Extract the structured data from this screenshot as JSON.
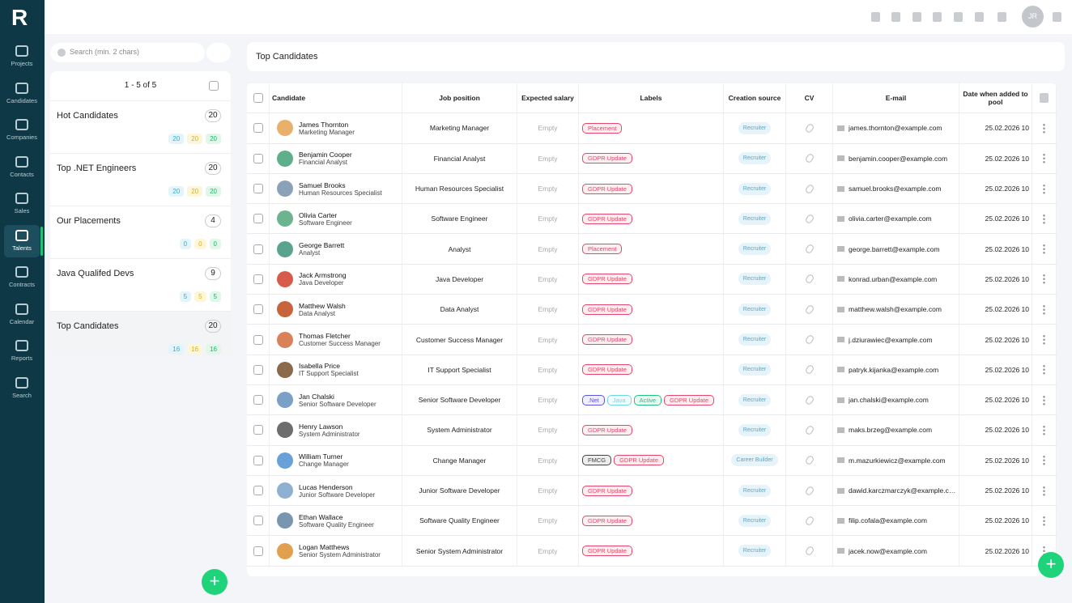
{
  "logo": "R",
  "nav": [
    {
      "label": "Projects"
    },
    {
      "label": "Candidates"
    },
    {
      "label": "Companies"
    },
    {
      "label": "Contacts"
    },
    {
      "label": "Sales"
    },
    {
      "label": "Talents",
      "active": true
    },
    {
      "label": "Contracts"
    },
    {
      "label": "Calendar"
    },
    {
      "label": "Reports"
    },
    {
      "label": "Search"
    }
  ],
  "user": {
    "initials": "JR"
  },
  "pools_panel": {
    "search_placeholder": "Search (min. 2 chars)",
    "pagination": "1 - 5 of 5",
    "pools": [
      {
        "name": "Hot Candidates",
        "count": 20,
        "stats": [
          20,
          20,
          20
        ]
      },
      {
        "name": "Top .NET Engineers",
        "count": 20,
        "stats": [
          20,
          20,
          20
        ]
      },
      {
        "name": "Our Placements",
        "count": 4,
        "stats": [
          0,
          0,
          0
        ]
      },
      {
        "name": "Java Qualifed Devs",
        "count": 9,
        "stats": [
          5,
          5,
          5
        ]
      },
      {
        "name": "Top Candidates",
        "count": 20,
        "stats": [
          16,
          16,
          16
        ],
        "selected": true
      }
    ]
  },
  "main": {
    "title": "Top Candidates",
    "table": {
      "columns": [
        "Candidate",
        "Job position",
        "Expected salary",
        "Labels",
        "Creation source",
        "CV",
        "E-mail",
        "Date when added to pool"
      ],
      "rows": [
        {
          "name": "James Thornton",
          "role": "Marketing Manager",
          "job": "Marketing Manager",
          "salary": "Empty",
          "labels": [
            {
              "text": "Placement",
              "color": "#e5486a"
            }
          ],
          "source": "Recruiter",
          "email": "james.thornton@example.com",
          "date": "25.02.2026 10"
        },
        {
          "name": "Benjamin Cooper",
          "role": "Financial Analyst",
          "job": "Financial Analyst",
          "salary": "Empty",
          "labels": [
            {
              "text": "GDPR Update",
              "color": "#e5486a"
            }
          ],
          "source": "Recruiter",
          "email": "benjamin.cooper@example.com",
          "date": "25.02.2026 10"
        },
        {
          "name": "Samuel Brooks",
          "role": "Human Resources Specialist",
          "job": "Human Resources Specialist",
          "salary": "Empty",
          "labels": [
            {
              "text": "GDPR Update",
              "color": "#e5486a"
            }
          ],
          "source": "Recruiter",
          "email": "samuel.brooks@example.com",
          "date": "25.02.2026 10"
        },
        {
          "name": "Olivia Carter",
          "role": "Software Engineer",
          "job": "Software Engineer",
          "salary": "Empty",
          "labels": [
            {
              "text": "GDPR Update",
              "color": "#e5486a"
            }
          ],
          "source": "Recruiter",
          "email": "olivia.carter@example.com",
          "date": "25.02.2026 10"
        },
        {
          "name": "George Barrett",
          "role": "Analyst",
          "job": "Analyst",
          "salary": "Empty",
          "labels": [
            {
              "text": "Placement",
              "color": "#e5486a"
            }
          ],
          "source": "Recruiter",
          "email": "george.barrett@example.com",
          "date": "25.02.2026 10"
        },
        {
          "name": "Jack Armstrong",
          "role": "Java Developer",
          "job": "Java Developer",
          "salary": "Empty",
          "labels": [
            {
              "text": "GDPR Update",
              "color": "#e5486a"
            }
          ],
          "source": "Recruiter",
          "email": "konrad.urban@example.com",
          "date": "25.02.2026 10"
        },
        {
          "name": "Matthew Walsh",
          "role": "Data Analyst",
          "job": "Data Analyst",
          "salary": "Empty",
          "labels": [
            {
              "text": "GDPR Update",
              "color": "#e5486a"
            }
          ],
          "source": "Recruiter",
          "email": "matthew.walsh@example.com",
          "date": "25.02.2026 10"
        },
        {
          "name": "Thomas Fletcher",
          "role": "Customer Success Manager",
          "job": "Customer Success Manager",
          "salary": "Empty",
          "labels": [
            {
              "text": "GDPR Update",
              "color": "#e5486a"
            }
          ],
          "source": "Recruiter",
          "email": "j.dziurawiec@example.com",
          "date": "25.02.2026 10"
        },
        {
          "name": "Isabella Price",
          "role": "IT Support Specialist",
          "job": "IT Support Specialist",
          "salary": "Empty",
          "labels": [
            {
              "text": "GDPR Update",
              "color": "#e5486a"
            }
          ],
          "source": "Recruiter",
          "email": "patryk.kijanka@example.com",
          "date": "25.02.2026 10"
        },
        {
          "name": "Jan Chalski",
          "role": "Senior Software Developer",
          "job": "Senior Software Developer",
          "salary": "Empty",
          "labels": [
            {
              "text": ".Net",
              "color": "#5b55d8"
            },
            {
              "text": "Java",
              "color": "#6fd6e6"
            },
            {
              "text": "Active",
              "color": "#23c27b"
            },
            {
              "text": "GDPR Update",
              "color": "#e5486a"
            }
          ],
          "source": "Recruiter",
          "email": "jan.chalski@example.com",
          "date": "25.02.2026 10"
        },
        {
          "name": "Henry Lawson",
          "role": "System Administrator",
          "job": "System Administrator",
          "salary": "Empty",
          "labels": [
            {
              "text": "GDPR Update",
              "color": "#e5486a"
            }
          ],
          "source": "Recruiter",
          "email": "maks.brzeg@example.com",
          "date": "25.02.2026 10"
        },
        {
          "name": "William Turner",
          "role": "Change Manager",
          "job": "Change Manager",
          "salary": "Empty",
          "labels": [
            {
              "text": "FMCG",
              "color": "#444444"
            },
            {
              "text": "GDPR Update",
              "color": "#e5486a"
            }
          ],
          "source": "Career Builder",
          "email": "m.mazurkiewicz@example.com",
          "date": "25.02.2026 10"
        },
        {
          "name": "Lucas Henderson",
          "role": "Junior Software Developer",
          "job": "Junior Software Developer",
          "salary": "Empty",
          "labels": [
            {
              "text": "GDPR Update",
              "color": "#e5486a"
            }
          ],
          "source": "Recruiter",
          "email": "dawid.karczmarczyk@example.com",
          "date": "25.02.2026 10"
        },
        {
          "name": "Ethan Wallace",
          "role": "Software Quality Engineer",
          "job": "Software Quality Engineer",
          "salary": "Empty",
          "labels": [
            {
              "text": "GDPR Update",
              "color": "#e5486a"
            }
          ],
          "source": "Recruiter",
          "email": "filip.cofala@example.com",
          "date": "25.02.2026 10"
        },
        {
          "name": "Logan Matthews",
          "role": "Senior System Administrator",
          "job": "Senior System Administrator",
          "salary": "Empty",
          "labels": [
            {
              "text": "GDPR Update",
              "color": "#e5486a"
            }
          ],
          "source": "Recruiter",
          "email": "jacek.now@example.com",
          "date": "25.02.2026 10"
        }
      ]
    }
  }
}
